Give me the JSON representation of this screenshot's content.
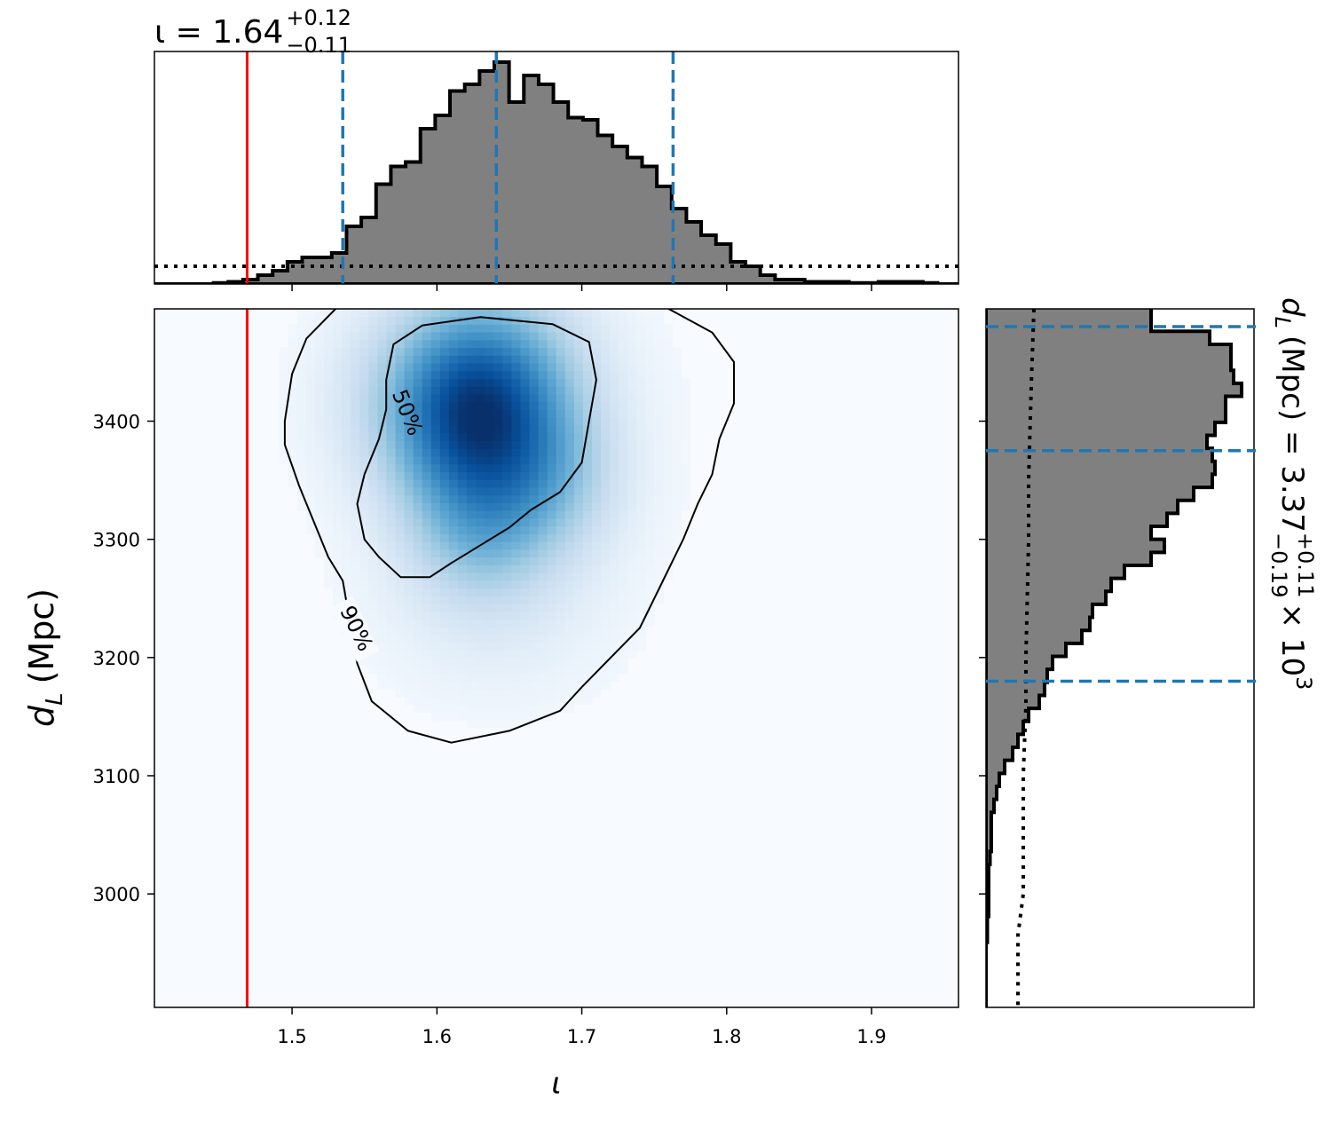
{
  "chart_data": [
    {
      "type": "bar",
      "role": "top-marginal-histogram",
      "title": {
        "base": "ι = 1.64",
        "sup": "+0.12",
        "sub": "−0.11"
      },
      "xlim": [
        1.405,
        1.96
      ],
      "x_ticks": [
        1.5,
        1.6,
        1.7,
        1.8,
        1.9
      ],
      "bin_edges_x": [
        1.405,
        1.4152,
        1.4254,
        1.4356,
        1.4458,
        1.456,
        1.4662,
        1.4764,
        1.4866,
        1.4968,
        1.507,
        1.5172,
        1.5274,
        1.5376,
        1.5478,
        1.558,
        1.5682,
        1.5784,
        1.5886,
        1.5988,
        1.609,
        1.6192,
        1.6294,
        1.6396,
        1.6498,
        1.66,
        1.6702,
        1.6804,
        1.6906,
        1.7008,
        1.711,
        1.7212,
        1.7314,
        1.7416,
        1.7518,
        1.762,
        1.7722,
        1.7824,
        1.7926,
        1.8028,
        1.813,
        1.8232,
        1.8334,
        1.8436,
        1.8538,
        1.864,
        1.8742,
        1.8844,
        1.8946,
        1.9048,
        1.915,
        1.9252,
        1.9354,
        1.9456,
        1.96
      ],
      "counts": [
        0,
        0,
        0,
        0,
        0.005,
        0.01,
        0.02,
        0.04,
        0.06,
        0.1,
        0.12,
        0.12,
        0.14,
        0.26,
        0.3,
        0.45,
        0.53,
        0.55,
        0.7,
        0.76,
        0.87,
        0.9,
        0.96,
        1.0,
        0.82,
        0.94,
        0.9,
        0.82,
        0.75,
        0.74,
        0.67,
        0.62,
        0.57,
        0.53,
        0.44,
        0.34,
        0.28,
        0.22,
        0.18,
        0.1,
        0.08,
        0.04,
        0.02,
        0.02,
        0.01,
        0.01,
        0.01,
        0.005,
        0.005,
        0.01,
        0.01,
        0.01,
        0.005,
        0
      ],
      "prior_level": 0.08,
      "dashed_lines_x": [
        1.535,
        1.641,
        1.763
      ],
      "truth_x": 1.469,
      "colors": {
        "hist_fill": "#808080",
        "hist_edge": "#000000",
        "quantile": "#1f77b4",
        "truth": "#ff0000",
        "prior": "#000000"
      }
    },
    {
      "type": "heatmap",
      "role": "joint-density",
      "xlabel": "ι",
      "ylabel": {
        "main": "d",
        "sub": "L",
        "unit": "(Mpc)"
      },
      "xlim": [
        1.405,
        1.96
      ],
      "ylim": [
        2904,
        3495
      ],
      "x_ticks": [
        1.5,
        1.6,
        1.7,
        1.8,
        1.9
      ],
      "y_ticks": [
        3000,
        3100,
        3200,
        3300,
        3400
      ],
      "colormap": [
        "#f7fbff",
        "#deebf7",
        "#c6dbef",
        "#9ecae1",
        "#6baed6",
        "#4292c6",
        "#2171b5",
        "#08519c",
        "#08306b"
      ],
      "density_blobs": [
        {
          "x": 1.635,
          "y": 3435,
          "sx": 0.045,
          "sy": 55,
          "w": 1.0
        },
        {
          "x": 1.625,
          "y": 3375,
          "sx": 0.04,
          "sy": 50,
          "w": 0.75
        },
        {
          "x": 1.68,
          "y": 3350,
          "sx": 0.035,
          "sy": 45,
          "w": 0.45
        },
        {
          "x": 1.63,
          "y": 3300,
          "sx": 0.035,
          "sy": 40,
          "w": 0.45
        },
        {
          "x": 1.6,
          "y": 3420,
          "sx": 0.05,
          "sy": 60,
          "w": 0.35
        },
        {
          "x": 1.64,
          "y": 3240,
          "sx": 0.06,
          "sy": 60,
          "w": 0.2
        },
        {
          "x": 1.65,
          "y": 3400,
          "sx": 0.09,
          "sy": 110,
          "w": 0.12
        }
      ],
      "contours": [
        {
          "label": "50%",
          "points": [
            [
              1.565,
              3435
            ],
            [
              1.57,
              3465
            ],
            [
              1.59,
              3481
            ],
            [
              1.63,
              3488
            ],
            [
              1.68,
              3482
            ],
            [
              1.705,
              3467
            ],
            [
              1.71,
              3435
            ],
            [
              1.705,
              3400
            ],
            [
              1.7,
              3365
            ],
            [
              1.685,
              3340
            ],
            [
              1.665,
              3325
            ],
            [
              1.65,
              3310
            ],
            [
              1.63,
              3295
            ],
            [
              1.61,
              3280
            ],
            [
              1.595,
              3268
            ],
            [
              1.575,
              3268
            ],
            [
              1.56,
              3285
            ],
            [
              1.55,
              3300
            ],
            [
              1.545,
              3330
            ],
            [
              1.55,
              3355
            ],
            [
              1.56,
              3385
            ],
            [
              1.565,
              3410
            ],
            [
              1.565,
              3435
            ]
          ]
        },
        {
          "label": "90%",
          "points": [
            [
              1.53,
              3495
            ],
            [
              1.51,
              3470
            ],
            [
              1.5,
              3440
            ],
            [
              1.495,
              3400
            ],
            [
              1.495,
              3380
            ],
            [
              1.505,
              3345
            ],
            [
              1.515,
              3315
            ],
            [
              1.525,
              3285
            ],
            [
              1.535,
              3265
            ],
            [
              1.54,
              3230
            ],
            [
              1.545,
              3195
            ],
            [
              1.555,
              3163
            ],
            [
              1.58,
              3138
            ],
            [
              1.61,
              3128
            ],
            [
              1.65,
              3138
            ],
            [
              1.685,
              3155
            ],
            [
              1.7,
              3175
            ],
            [
              1.72,
              3200
            ],
            [
              1.74,
              3225
            ],
            [
              1.75,
              3250
            ],
            [
              1.76,
              3275
            ],
            [
              1.77,
              3300
            ],
            [
              1.78,
              3330
            ],
            [
              1.79,
              3355
            ],
            [
              1.795,
              3385
            ],
            [
              1.805,
              3415
            ],
            [
              1.805,
              3450
            ],
            [
              1.79,
              3475
            ],
            [
              1.76,
              3495
            ]
          ]
        }
      ],
      "truth_x": 1.469
    },
    {
      "type": "bar",
      "role": "right-marginal-histogram",
      "title": {
        "base": "d",
        "base_sub": "L",
        "unit": "(Mpc) = 3.37",
        "sup": "+0.11",
        "sub": "−0.19",
        "suffix": "× 10",
        "exp": "3"
      },
      "ylim": [
        2904,
        3495
      ],
      "y_ticks": [
        3000,
        3100,
        3200,
        3300,
        3400
      ],
      "bin_edges_y": [
        2904,
        2915,
        2926,
        2937,
        2948,
        2959,
        2970,
        2981,
        2992,
        3003,
        3014,
        3025,
        3036,
        3047,
        3058,
        3069,
        3080,
        3091,
        3102,
        3113,
        3124,
        3135,
        3146,
        3157,
        3168,
        3179,
        3190,
        3201,
        3212,
        3223,
        3234,
        3245,
        3256,
        3267,
        3278,
        3289,
        3300,
        3311,
        3322,
        3333,
        3344,
        3355,
        3366,
        3377,
        3388,
        3399,
        3410,
        3421,
        3432,
        3443,
        3454,
        3465,
        3476,
        3487,
        3498
      ],
      "counts": [
        0,
        0,
        0,
        0,
        0,
        0.005,
        0.005,
        0.01,
        0.01,
        0.01,
        0.01,
        0.015,
        0.02,
        0.02,
        0.02,
        0.03,
        0.04,
        0.05,
        0.07,
        0.1,
        0.12,
        0.14,
        0.16,
        0.2,
        0.22,
        0.23,
        0.25,
        0.3,
        0.36,
        0.39,
        0.4,
        0.45,
        0.47,
        0.52,
        0.62,
        0.67,
        0.62,
        0.68,
        0.72,
        0.78,
        0.85,
        0.86,
        0.85,
        0.83,
        0.86,
        0.9,
        0.9,
        0.96,
        0.93,
        0.92,
        0.92,
        0.84,
        0.62,
        0.62
      ],
      "prior_points": [
        [
          3495,
          0.18
        ],
        [
          3430,
          0.17
        ],
        [
          3350,
          0.16
        ],
        [
          3300,
          0.16
        ],
        [
          3200,
          0.15
        ],
        [
          3160,
          0.15
        ],
        [
          3100,
          0.14
        ],
        [
          3000,
          0.14
        ],
        [
          2965,
          0.12
        ],
        [
          2904,
          0.12
        ]
      ],
      "dashed_lines_y": [
        3180,
        3375,
        3480
      ]
    }
  ]
}
